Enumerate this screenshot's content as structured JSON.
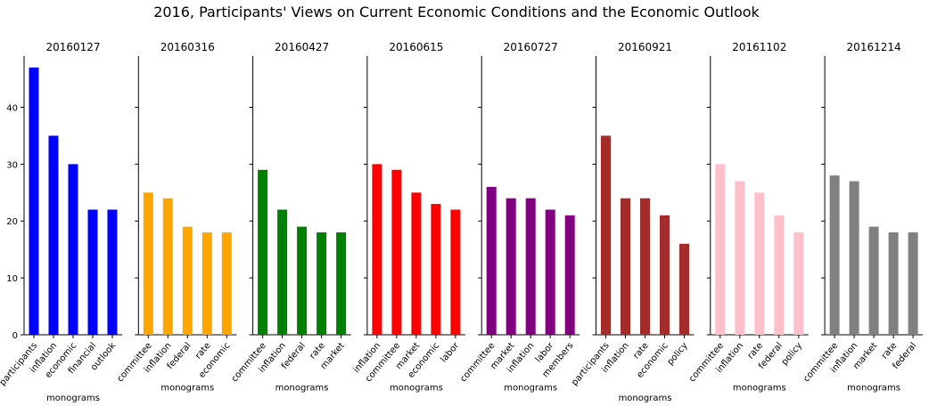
{
  "chart_data": {
    "type": "bar",
    "suptitle": "2016, Participants' Views on Current Economic Conditions and the Economic Outlook",
    "xlabel": "monograms",
    "ylim": [
      0,
      49
    ],
    "yticks": [
      0,
      10,
      20,
      30,
      40
    ],
    "panels": [
      {
        "title": "20160127",
        "color": "#0000ff",
        "categories": [
          "participants",
          "inflation",
          "economic",
          "financial",
          "outlook"
        ],
        "values": [
          47,
          35,
          30,
          22,
          22
        ]
      },
      {
        "title": "20160316",
        "color": "#ffa500",
        "categories": [
          "committee",
          "inflation",
          "federal",
          "rate",
          "economic"
        ],
        "values": [
          25,
          24,
          19,
          18,
          18
        ]
      },
      {
        "title": "20160427",
        "color": "#008000",
        "categories": [
          "committee",
          "inflation",
          "federal",
          "rate",
          "market"
        ],
        "values": [
          29,
          22,
          19,
          18,
          18
        ]
      },
      {
        "title": "20160615",
        "color": "#ff0000",
        "categories": [
          "inflation",
          "committee",
          "market",
          "economic",
          "labor"
        ],
        "values": [
          30,
          29,
          25,
          23,
          22
        ]
      },
      {
        "title": "20160727",
        "color": "#800080",
        "categories": [
          "committee",
          "market",
          "inflation",
          "labor",
          "members"
        ],
        "values": [
          26,
          24,
          24,
          22,
          21
        ]
      },
      {
        "title": "20160921",
        "color": "#a52a2a",
        "categories": [
          "participants",
          "inflation",
          "rate",
          "economic",
          "policy"
        ],
        "values": [
          35,
          24,
          24,
          21,
          16
        ]
      },
      {
        "title": "20161102",
        "color": "#ffc0cb",
        "categories": [
          "committee",
          "inflation",
          "rate",
          "federal",
          "policy"
        ],
        "values": [
          30,
          27,
          25,
          21,
          18
        ]
      },
      {
        "title": "20161214",
        "color": "#808080",
        "categories": [
          "committee",
          "inflation",
          "market",
          "rate",
          "federal"
        ],
        "values": [
          28,
          27,
          19,
          18,
          18
        ]
      }
    ]
  }
}
